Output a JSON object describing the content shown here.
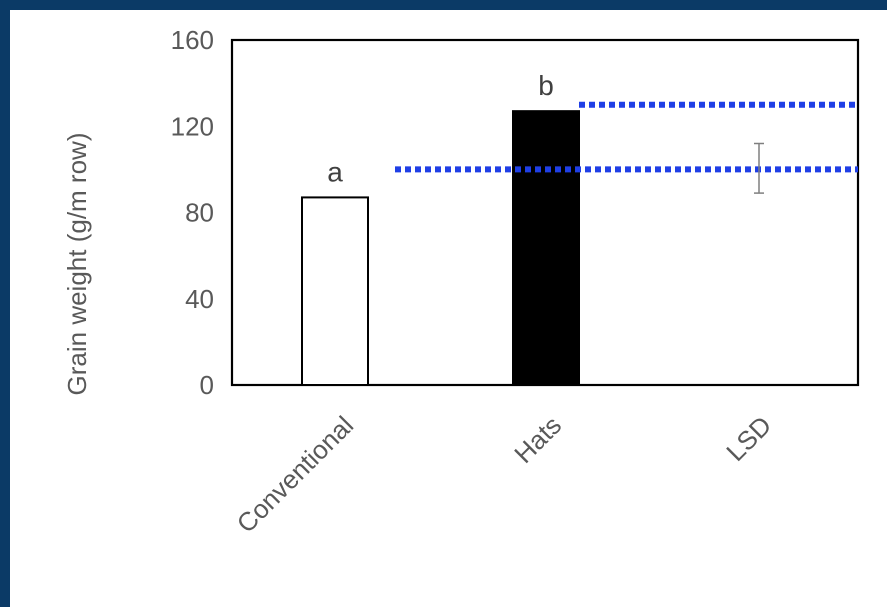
{
  "colors": {
    "frame": "#0b3a66",
    "background": "#ffffff",
    "bar_conventional_fill": "#ffffff",
    "bar_hats_fill": "#000000",
    "bar_stroke": "#000000",
    "reference_line": "#1f3fe6",
    "error_bar": "#7f7f7f",
    "text": "#595959"
  },
  "chart_data": {
    "type": "bar",
    "title": "",
    "xlabel": "",
    "ylabel": "Grain weight (g/m row)",
    "ylim": [
      0,
      160
    ],
    "yticks": [
      "0",
      "40",
      "80",
      "120",
      "160"
    ],
    "categories": [
      "Conventional",
      "Hats",
      "LSD"
    ],
    "values": [
      87,
      127,
      null
    ],
    "significance_letters": [
      "a",
      "b",
      ""
    ],
    "reference_lines": [
      {
        "value": 100,
        "from_category": "Conventional",
        "to_category": "LSD",
        "style": "dotted"
      },
      {
        "value": 130,
        "from_category": "Hats",
        "to_category": "LSD",
        "style": "dotted"
      }
    ],
    "lsd_error_bar": {
      "center": 100,
      "low": 89,
      "high": 112
    },
    "grid": false,
    "legend": "none"
  }
}
